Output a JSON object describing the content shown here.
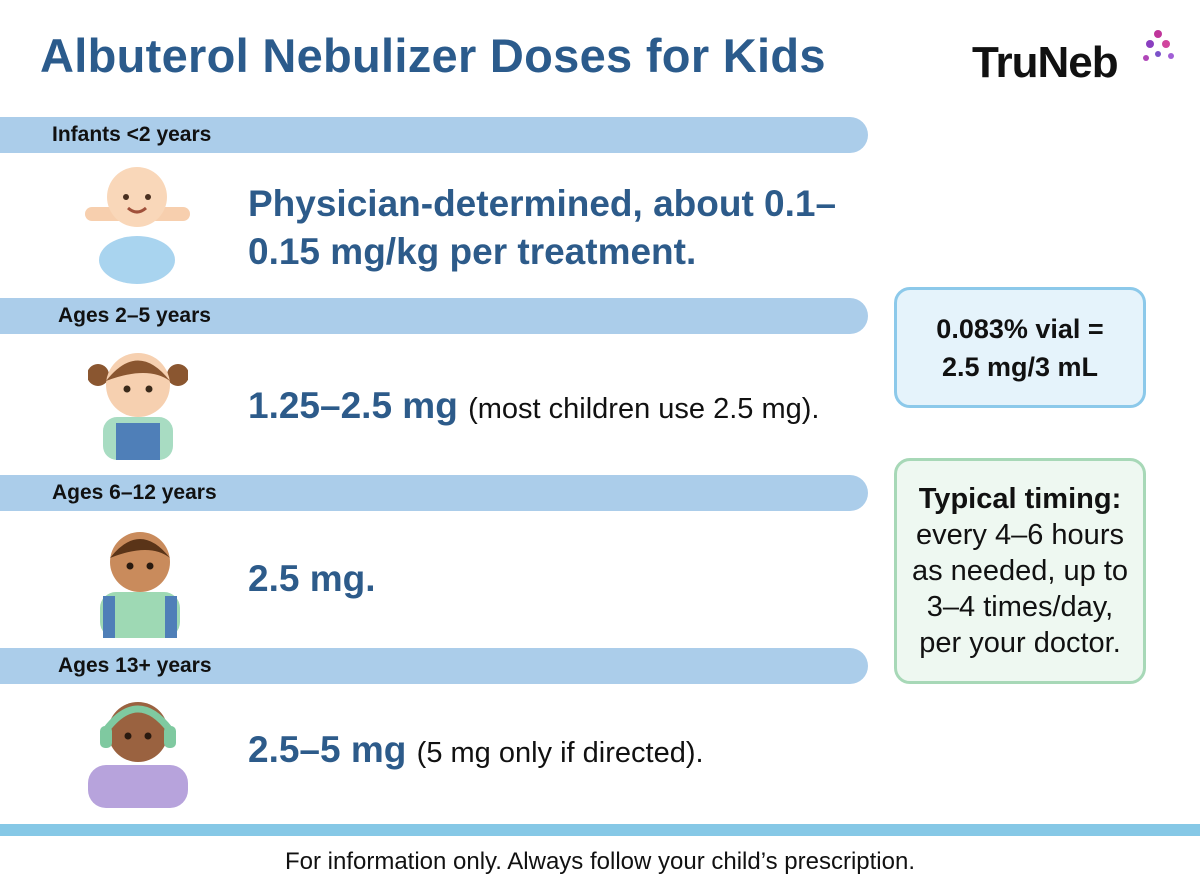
{
  "header": {
    "title": "Albuterol Nebulizer Doses for Kids",
    "logo": "TruNeb"
  },
  "groups": [
    {
      "label": "Infants <2 years",
      "dose": "Physician-determined, about 0.1–0.15 mg/kg per treatment."
    },
    {
      "label": "Ages 2–5 years",
      "dose": "1.25–2.5 mg",
      "note": "(most children use 2.5 mg)."
    },
    {
      "label": "Ages 6–12 years",
      "dose": "2.5 mg."
    },
    {
      "label": "Ages 13+ years",
      "dose": "2.5–5 mg",
      "note": "(5 mg only if directed)."
    }
  ],
  "vial_box": {
    "text": "0.083% vial = 2.5 mg/3 mL"
  },
  "timing_box": {
    "heading": "Typical timing:",
    "body": "every 4–6 hours as needed, up to 3–4 times/day, per your doctor."
  },
  "footer": "For information only. Always follow your child’s prescription."
}
